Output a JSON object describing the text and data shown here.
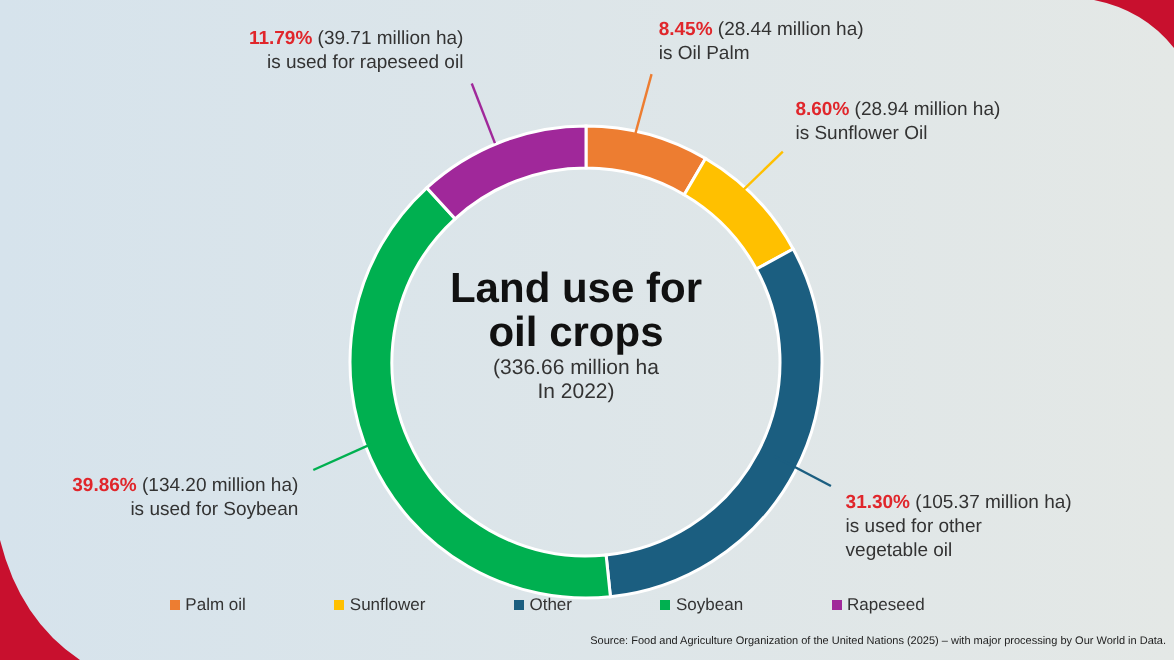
{
  "chart_data": {
    "type": "donut",
    "title": "Land use for oil crops",
    "subtitle": "(336.66 million ha\nIn 2022)",
    "categories": [
      "Palm oil",
      "Sunflower",
      "Other",
      "Soybean",
      "Rapeseed"
    ],
    "values": [
      8.45,
      8.6,
      31.3,
      39.86,
      11.79
    ],
    "colors": [
      "#ed7d31",
      "#ffc000",
      "#1b5e80",
      "#00b050",
      "#a0289a"
    ],
    "value_labels": [
      "8.45% (28.44 million ha)\nis Oil Palm",
      "8.60% (28.94 million ha)\nis Sunflower Oil",
      "31.30% (105.37 million ha)\nis used for other\nvegetable oil",
      "39.86% (134.20 million ha)\nis used for Soybean",
      "11.79% (39.71 million ha)\nis used for rapeseed oil"
    ],
    "legend": "bottom",
    "annotations": [
      "Source: Food and Agriculture Organization of the United Nations (2025) – with major processing by Our World in Data."
    ]
  }
}
